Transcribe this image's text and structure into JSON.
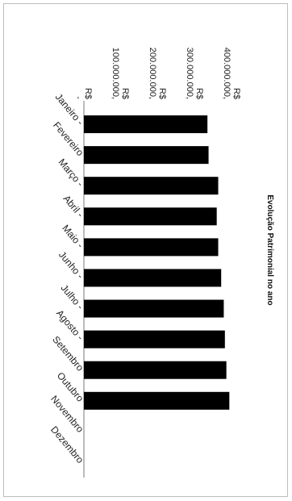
{
  "chart_data": {
    "type": "bar",
    "orientation": "horizontal",
    "title": "Evolução Patrimonial no ano",
    "categories": [
      "Janeiro",
      "Fevereiro",
      "Março",
      "Abril",
      "Maio",
      "Junho",
      "Julho",
      "Agosto",
      "Setembro",
      "Outubro",
      "Novembro",
      "Dezembro"
    ],
    "values": [
      333000000,
      336000000,
      362000000,
      358000000,
      362000000,
      370000000,
      377000000,
      380000000,
      384000000,
      392000000,
      null,
      null
    ],
    "value_axis": {
      "min": 0,
      "max": 400000000,
      "ticks": [
        0,
        100000000,
        200000000,
        300000000,
        400000000
      ],
      "tick_labels": [
        "R$ -",
        "R$ 100.000.000,",
        "R$ 200.000.000,",
        "R$ 300.000.000,",
        "R$ 400.000.000,"
      ]
    },
    "bar_color": "#000000",
    "rotated": "90deg clockwise"
  }
}
